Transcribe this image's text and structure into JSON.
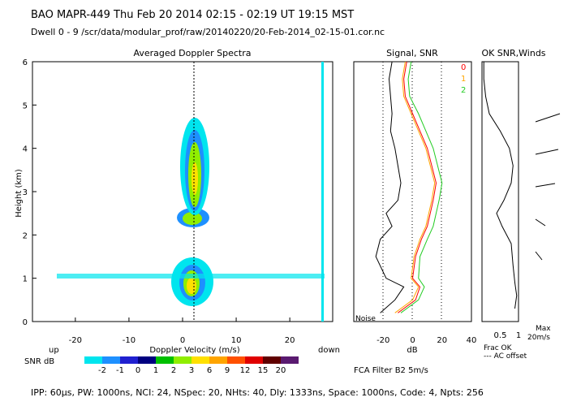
{
  "header": {
    "title": "BAO  MAPR-449  Thu Feb 20 2014 02:15 - 02:19 UT 19:15 MST",
    "dwell": "Dwell  0 - 9   /scr/data/modular_prof/raw/20140220/20-Feb-2014_02-15-01.cor.nc"
  },
  "spectra": {
    "title": "Averaged Doppler Spectra",
    "ylabel": "Height (km)",
    "xlabel": "Doppler Velocity (m/s)",
    "up_label": "up",
    "down_label": "down",
    "xlim": [
      -28,
      28
    ],
    "ylim": [
      0,
      6
    ],
    "yticks": [
      "0",
      "1",
      "2",
      "3",
      "4",
      "5",
      "6"
    ],
    "xticks": [
      "-20",
      "-10",
      "0",
      "10",
      "20"
    ]
  },
  "snr_panel": {
    "title": "Signal, SNR",
    "xlabel": "dB",
    "xticks": [
      "-20",
      "0",
      "20",
      "40"
    ],
    "noise_label": "Noise"
  },
  "winds_panel": {
    "title": "OK SNR,Winds",
    "xticks": [
      "0.5",
      "1"
    ],
    "frac_label": "Frac OK",
    "ac_label": "--- AC offset",
    "max_label": "Max",
    "max_value": "20m/s",
    "legend": [
      {
        "label": "0",
        "color": "#ff0000"
      },
      {
        "label": "1",
        "color": "#ffa500"
      },
      {
        "label": "2",
        "color": "#22cc22"
      }
    ]
  },
  "colorbar": {
    "label": "SNR dB",
    "ticks": [
      "-2",
      "-1",
      "0",
      "1",
      "2",
      "3",
      "6",
      "9",
      "12",
      "15",
      "20"
    ],
    "colors": [
      "#00e5ee",
      "#1e90ff",
      "#2020d0",
      "#000080",
      "#00c000",
      "#90ee00",
      "#ffe000",
      "#ffa500",
      "#ff5000",
      "#e00000",
      "#600000",
      "#5a1a70"
    ]
  },
  "filter_label": "FCA Filter B2  5m/s",
  "footer": "IPP: 60μs,  PW: 1000ns,  NCI: 24,  NSpec: 20,  NHts: 40,  Dly: 1333ns,  Space: 1000ns,  Code: 4,  Npts: 256",
  "chart_data": {
    "type": "line",
    "snr_profile": {
      "height_km": [
        0.2,
        0.5,
        0.8,
        1.0,
        1.5,
        1.9,
        2.2,
        2.5,
        2.8,
        3.2,
        3.6,
        4.0,
        4.4,
        4.8,
        5.2,
        5.6,
        6.0
      ],
      "signal_db": [
        -22,
        -12,
        -6,
        -18,
        -25,
        -22,
        -14,
        -18,
        -10,
        -8,
        -10,
        -12,
        -15,
        -14,
        -15,
        -16,
        -14
      ],
      "snr_db_0": [
        -10,
        2,
        5,
        0,
        2,
        6,
        10,
        12,
        14,
        16,
        13,
        10,
        5,
        0,
        -5,
        -6,
        -4
      ],
      "snr_db_1": [
        -12,
        0,
        4,
        -1,
        1,
        5,
        9,
        11,
        13,
        15,
        12,
        9,
        4,
        -1,
        -6,
        -7,
        -5
      ],
      "snr_db_2": [
        -8,
        4,
        8,
        4,
        5,
        10,
        14,
        16,
        18,
        20,
        17,
        14,
        9,
        4,
        -2,
        -3,
        -1
      ]
    },
    "frac_ok": {
      "height_km": [
        0.3,
        0.6,
        0.9,
        1.3,
        1.8,
        2.2,
        2.5,
        2.8,
        3.2,
        3.6,
        4.0,
        4.4,
        4.8,
        5.2,
        5.6,
        6.0
      ],
      "beam_0": [
        0.9,
        0.95,
        0.9,
        0.85,
        0.8,
        0.55,
        0.4,
        0.6,
        0.8,
        0.85,
        0.75,
        0.5,
        0.2,
        0.1,
        0.05,
        0.05
      ]
    }
  }
}
